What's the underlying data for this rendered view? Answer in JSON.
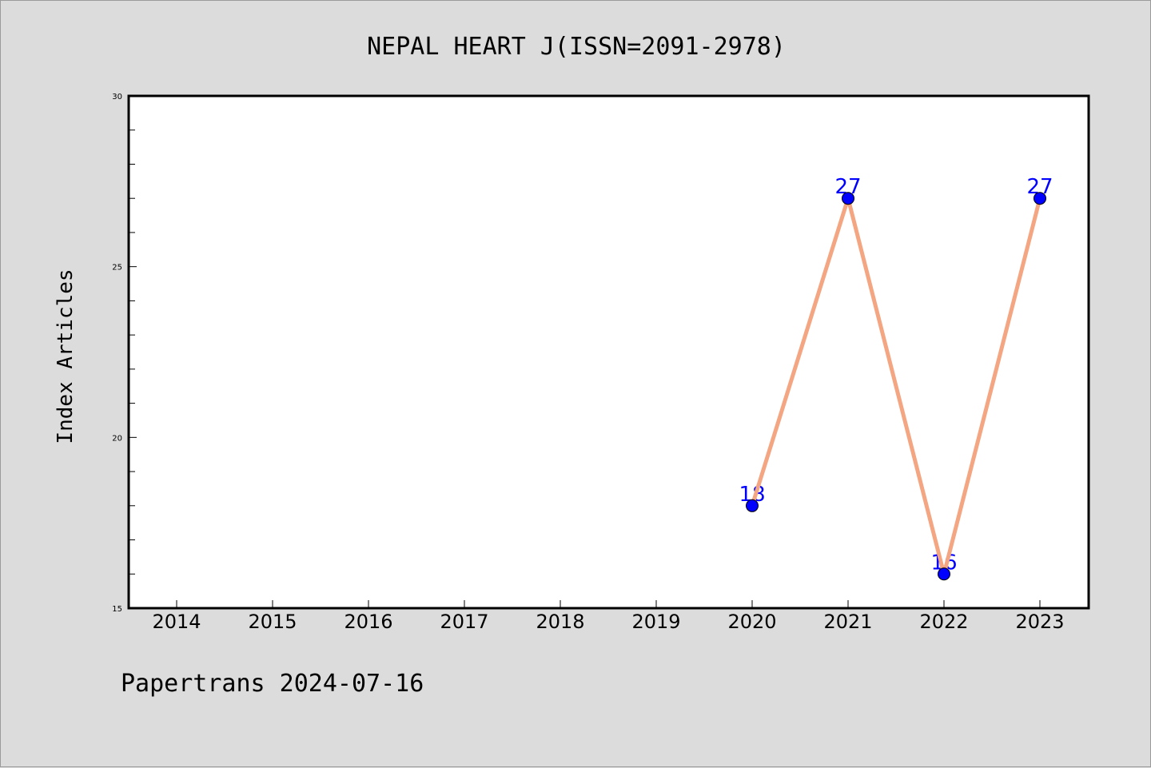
{
  "chart_data": {
    "type": "line",
    "title": "NEPAL HEART J(ISSN=2091-2978)",
    "xlabel": "",
    "ylabel": "Index Articles",
    "categories": [
      "2014",
      "2015",
      "2016",
      "2017",
      "2018",
      "2019",
      "2020",
      "2021",
      "2022",
      "2023"
    ],
    "x": [
      "2020",
      "2021",
      "2022",
      "2023"
    ],
    "values": [
      18,
      27,
      16,
      27
    ],
    "data_labels": [
      "18",
      "27",
      "16",
      "27"
    ],
    "ylim": [
      15,
      30
    ],
    "yticks": [
      "15",
      "20",
      "25",
      "30"
    ],
    "grid": false,
    "legend": "none",
    "line_color": "#f4a582",
    "marker_color": "#0000ff",
    "label_color": "#0000ff"
  },
  "footer": "Papertrans 2024-07-16",
  "colors": {
    "background": "#dcdcdc",
    "plot_background": "#ffffff"
  }
}
